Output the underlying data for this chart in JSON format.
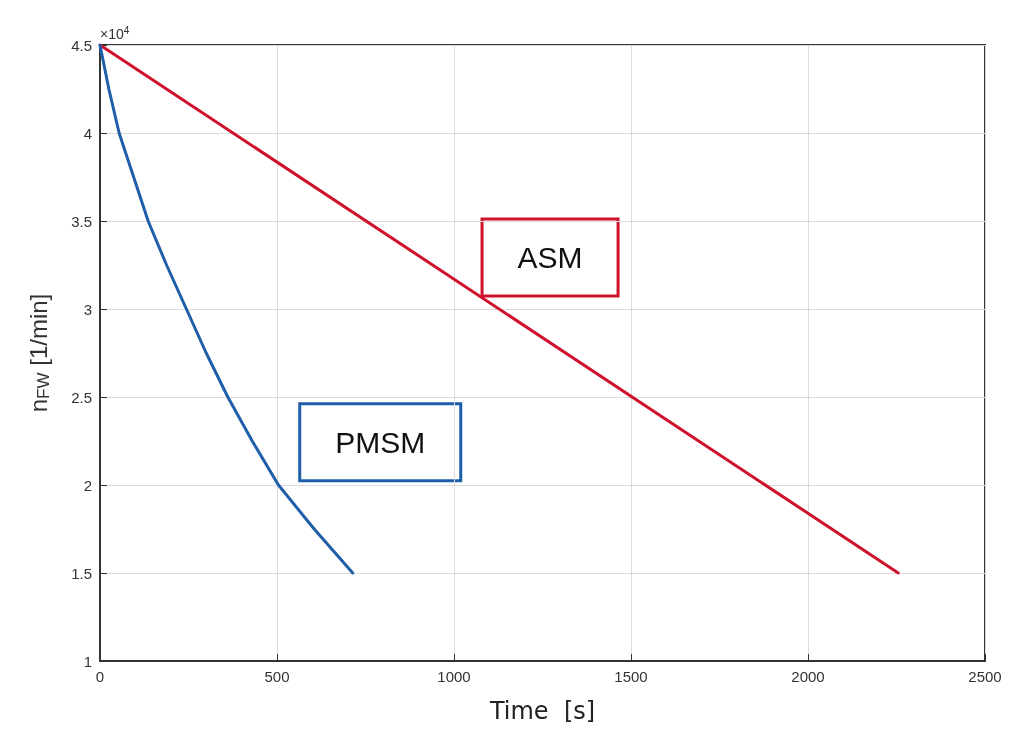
{
  "chart_data": {
    "type": "line",
    "xlabel": "Time  [s]",
    "ylabel": "n$_{FW}$ [1/min]",
    "annotations": [
      "×10$^{4}$"
    ],
    "xlim": [
      0,
      2500
    ],
    "xticks": [
      0,
      500,
      1000,
      1500,
      2000,
      2500
    ],
    "ylim": [
      1,
      4.5
    ],
    "yticks": [
      1,
      1.5,
      2,
      2.5,
      3,
      3.5,
      4,
      4.5
    ],
    "grid": true,
    "marker": "none",
    "line_style": "solid",
    "series": [
      {
        "name": "ASM",
        "color": "#d0112b",
        "x": [
          0,
          2255
        ],
        "values": [
          4.5,
          1.5
        ]
      },
      {
        "name": "PMSM",
        "color": "#1f5faa",
        "x": [
          0,
          25,
          54,
          95,
          136,
          188,
          244,
          300,
          361,
          430,
          504,
          605,
          714
        ],
        "values": [
          4.5,
          4.25,
          4,
          3.75,
          3.5,
          3.25,
          3,
          2.75,
          2.5,
          2.25,
          2,
          1.75,
          1.5
        ]
      }
    ]
  }
}
